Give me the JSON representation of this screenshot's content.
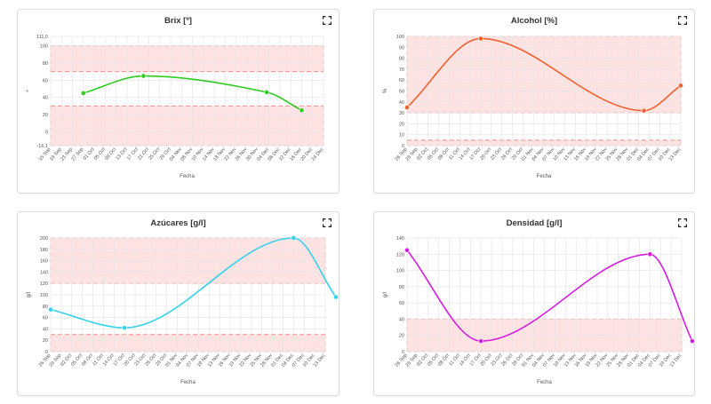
{
  "ui": {
    "expand_icon": "expand-icon"
  },
  "chart_data": [
    {
      "type": "line",
      "title": "Brix [º]",
      "xlabel": "Fecha",
      "ylabel": "º",
      "categories": [
        "15 Sep",
        "19 Sep",
        "23 Sep",
        "27 Sep",
        "01 Oct",
        "05 Oct",
        "09 Oct",
        "13 Oct",
        "17 Oct",
        "21 Oct",
        "25 Oct",
        "29 Oct",
        "04 Nov",
        "08 Nov",
        "10 Nov",
        "14 Nov",
        "18 Nov",
        "22 Nov",
        "26 Nov",
        "30 Nov",
        "04 Dec",
        "08 Dec",
        "12 Dec",
        "16 Dec",
        "20 Dec",
        "24 Dec"
      ],
      "ylim": [
        -16.1,
        111.0
      ],
      "yticks": [
        "111,0",
        "100",
        "80",
        "60",
        "40",
        "20",
        "0",
        "-16,1"
      ],
      "ytick_values": [
        111.0,
        100,
        80,
        60,
        40,
        20,
        0,
        -16.1
      ],
      "series": [
        {
          "color": "#2ecc1f",
          "points": [
            [
              3,
              45
            ],
            [
              8.5,
              65
            ],
            [
              19.8,
              46
            ],
            [
              23,
              25
            ]
          ]
        }
      ],
      "bands": [
        [
          70,
          100
        ],
        [
          -16.1,
          30
        ]
      ]
    },
    {
      "type": "line",
      "title": "Alcohol [%]",
      "xlabel": "Fecha",
      "ylabel": "%",
      "categories": [
        "26 Sep",
        "29 Sep",
        "02 Oct",
        "05 Oct",
        "08 Oct",
        "11 Oct",
        "14 Oct",
        "17 Oct",
        "20 Oct",
        "23 Oct",
        "26 Oct",
        "29 Oct",
        "01 Nov",
        "04 Nov",
        "07 Nov",
        "10 Nov",
        "13 Nov",
        "16 Nov",
        "19 Nov",
        "22 Nov",
        "25 Nov",
        "28 Nov",
        "01 Dec",
        "04 Dec",
        "07 Dec",
        "10 Dec",
        "13 Dec"
      ],
      "ylim": [
        0,
        100
      ],
      "yticks": [
        "100",
        "90",
        "80",
        "70",
        "60",
        "50",
        "40",
        "30",
        "20",
        "10",
        "0"
      ],
      "ytick_values": [
        100,
        90,
        80,
        70,
        60,
        50,
        40,
        30,
        20,
        10,
        0
      ],
      "series": [
        {
          "color": "#f0612d",
          "points": [
            [
              0,
              35
            ],
            [
              7,
              98
            ],
            [
              22.5,
              32
            ],
            [
              26,
              55
            ]
          ]
        }
      ],
      "bands": [
        [
          30,
          100
        ],
        [
          0,
          5
        ]
      ]
    },
    {
      "type": "line",
      "title": "Azúcares [g/l]",
      "xlabel": "Fecha",
      "ylabel": "g/l",
      "categories": [
        "26 Sep",
        "29 Sep",
        "02 Oct",
        "05 Oct",
        "08 Oct",
        "11 Oct",
        "14 Oct",
        "17 Oct",
        "20 Oct",
        "23 Oct",
        "26 Oct",
        "29 Oct",
        "01 Nov",
        "04 Nov",
        "07 Nov",
        "10 Nov",
        "13 Nov",
        "16 Nov",
        "19 Nov",
        "22 Nov",
        "25 Nov",
        "28 Nov",
        "01 Dec",
        "04 Dec",
        "07 Dec",
        "10 Dec",
        "13 Dec"
      ],
      "ylim": [
        0,
        200
      ],
      "yticks": [
        "200",
        "180",
        "160",
        "140",
        "120",
        "100",
        "80",
        "60",
        "40",
        "20",
        "0"
      ],
      "ytick_values": [
        200,
        180,
        160,
        140,
        120,
        100,
        80,
        60,
        40,
        20,
        0
      ],
      "series": [
        {
          "color": "#33d1ec",
          "points": [
            [
              0,
              74
            ],
            [
              7,
              42
            ],
            [
              23,
              200
            ],
            [
              27,
              96
            ]
          ]
        }
      ],
      "bands": [
        [
          120,
          200
        ],
        [
          0,
          30
        ]
      ]
    },
    {
      "type": "line",
      "title": "Densidad [g/l]",
      "xlabel": "Fecha",
      "ylabel": "g/l",
      "categories": [
        "26 Sep",
        "29 Sep",
        "02 Oct",
        "05 Oct",
        "08 Oct",
        "11 Oct",
        "14 Oct",
        "17 Oct",
        "20 Oct",
        "23 Oct",
        "26 Oct",
        "29 Oct",
        "01 Nov",
        "04 Nov",
        "07 Nov",
        "10 Nov",
        "13 Nov",
        "16 Nov",
        "19 Nov",
        "22 Nov",
        "25 Nov",
        "28 Nov",
        "01 Dec",
        "04 Dec",
        "07 Dec",
        "10 Dec",
        "13 Dec"
      ],
      "ylim": [
        0,
        140
      ],
      "yticks": [
        "140",
        "120",
        "100",
        "80",
        "60",
        "40",
        "20",
        "0"
      ],
      "ytick_values": [
        140,
        120,
        100,
        80,
        60,
        40,
        20,
        0
      ],
      "series": [
        {
          "color": "#d61ce0",
          "points": [
            [
              0,
              125
            ],
            [
              7,
              13
            ],
            [
              23,
              120
            ],
            [
              27,
              13
            ]
          ]
        }
      ],
      "bands": [
        [
          0,
          40
        ]
      ]
    }
  ]
}
